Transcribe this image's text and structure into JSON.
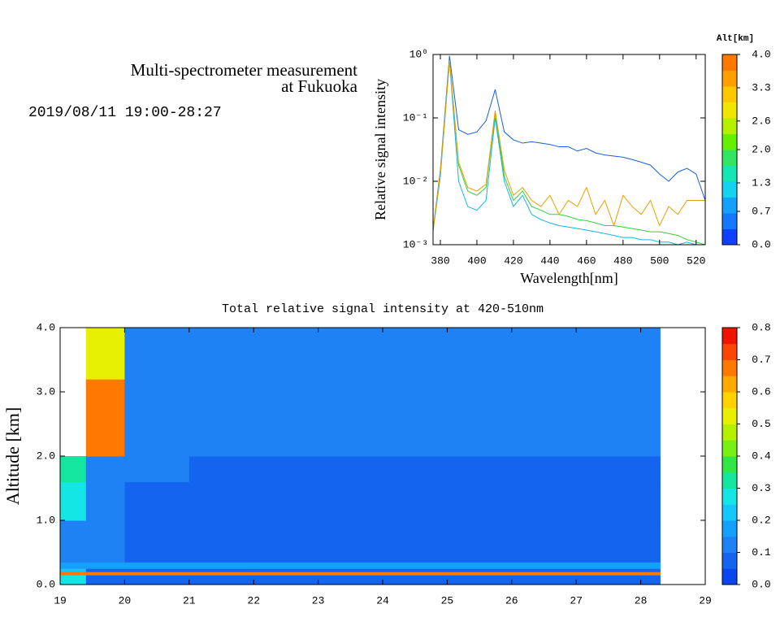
{
  "header": {
    "title_lines": [
      "Multi-spectrometer measurement",
      "at Fukuoka"
    ],
    "date": "2019/08/11 19:00-28:27"
  },
  "chart_data": [
    {
      "type": "line",
      "ylabel": "Relative signal intensity",
      "xlabel": "Wavelength[nm]",
      "log_y": true,
      "xlim": [
        376,
        525
      ],
      "xticks": [
        380,
        400,
        420,
        440,
        460,
        480,
        500,
        520
      ],
      "ylim": [
        0.001,
        1
      ],
      "yticks": [
        {
          "value": 1,
          "label": "10⁰"
        },
        {
          "value": 0.1,
          "label": "10⁻¹"
        },
        {
          "value": 0.01,
          "label": "10⁻²"
        },
        {
          "value": 0.001,
          "label": "10⁻³"
        }
      ],
      "x": [
        375,
        380,
        385,
        390,
        395,
        400,
        405,
        410,
        415,
        420,
        425,
        430,
        435,
        440,
        445,
        450,
        455,
        460,
        465,
        470,
        475,
        480,
        485,
        490,
        495,
        500,
        505,
        510,
        515,
        520,
        525
      ],
      "series": [
        {
          "color": "#1a5fd6",
          "values": [
            0.001,
            0.015,
            0.95,
            0.065,
            0.055,
            0.06,
            0.09,
            0.28,
            0.06,
            0.045,
            0.04,
            0.042,
            0.04,
            0.038,
            0.035,
            0.035,
            0.03,
            0.033,
            0.028,
            0.026,
            0.025,
            0.024,
            0.022,
            0.02,
            0.018,
            0.013,
            0.01,
            0.014,
            0.016,
            0.013,
            0.005
          ]
        },
        {
          "color": "#14b4e6",
          "values": [
            0.001,
            0.012,
            0.8,
            0.01,
            0.004,
            0.0035,
            0.005,
            0.1,
            0.01,
            0.004,
            0.006,
            0.003,
            0.0025,
            0.0022,
            0.002,
            0.0019,
            0.0018,
            0.0017,
            0.0016,
            0.0015,
            0.0014,
            0.0013,
            0.0013,
            0.0012,
            0.0012,
            0.0011,
            0.0011,
            0.001,
            0.0011,
            0.001,
            0.001
          ]
        },
        {
          "color": "#32d23c",
          "values": [
            0.001,
            0.013,
            0.8,
            0.018,
            0.007,
            0.006,
            0.008,
            0.12,
            0.012,
            0.005,
            0.007,
            0.004,
            0.0035,
            0.003,
            0.003,
            0.0028,
            0.0025,
            0.0024,
            0.0022,
            0.002,
            0.002,
            0.0019,
            0.0018,
            0.0017,
            0.0016,
            0.0016,
            0.0015,
            0.0014,
            0.0012,
            0.0011,
            0.001
          ]
        },
        {
          "color": "#e6a000",
          "values": [
            0.001,
            0.014,
            0.8,
            0.02,
            0.008,
            0.007,
            0.009,
            0.13,
            0.015,
            0.006,
            0.008,
            0.005,
            0.004,
            0.006,
            0.003,
            0.005,
            0.004,
            0.008,
            0.003,
            0.005,
            0.002,
            0.006,
            0.004,
            0.003,
            0.005,
            0.002,
            0.004,
            0.003,
            0.005,
            0.005,
            0.005
          ]
        }
      ],
      "colorbar": {
        "label": "Alt[km]",
        "lim": [
          0,
          4
        ],
        "ticks": [
          {
            "value": 0,
            "label": "0.0"
          },
          0.7,
          1.3,
          {
            "value": 2,
            "label": "2.0"
          },
          2.6,
          3.3,
          {
            "value": 4,
            "label": "4.0"
          }
        ],
        "colors": [
          "#1040ff",
          "#1478ff",
          "#14a0ff",
          "#14d2f0",
          "#14e6b4",
          "#32e664",
          "#64f000",
          "#b4f000",
          "#f0e600",
          "#ffc800",
          "#ffa000",
          "#ff7800"
        ]
      }
    },
    {
      "type": "heatmap",
      "title": "Total relative signal intensity at 420-510nm",
      "ylabel": "Altitude [km]",
      "xlim": [
        19,
        29
      ],
      "xticks": [
        19,
        20,
        21,
        22,
        23,
        24,
        25,
        26,
        27,
        28,
        29
      ],
      "ylim": [
        0,
        4
      ],
      "yticks": [
        {
          "value": 0,
          "label": "0.0"
        },
        {
          "value": 1,
          "label": "1.0"
        },
        {
          "value": 2,
          "label": "2.0"
        },
        {
          "value": 3,
          "label": "3.0"
        },
        {
          "value": 4,
          "label": "4.0"
        }
      ],
      "x_bins": [
        19,
        19.4,
        20,
        21,
        22,
        23,
        24,
        25,
        26,
        27,
        28,
        28.3
      ],
      "y_bins": [
        0,
        0.15,
        0.2,
        0.25,
        0.35,
        1.0,
        1.6,
        2.0,
        2.6,
        3.2,
        4.0
      ],
      "z": [
        [
          0.3,
          0.05,
          0.05,
          0.05,
          0.05,
          0.05,
          0.05,
          0.05,
          0.05,
          0.05,
          0.05
        ],
        [
          0.65,
          0.65,
          0.65,
          0.65,
          0.65,
          0.65,
          0.65,
          0.65,
          0.65,
          0.65,
          0.65
        ],
        [
          0.2,
          0.06,
          0.06,
          0.06,
          0.06,
          0.06,
          0.06,
          0.06,
          0.06,
          0.06,
          0.06
        ],
        [
          0.16,
          0.16,
          0.16,
          0.16,
          0.16,
          0.16,
          0.16,
          0.16,
          0.16,
          0.16,
          0.16
        ],
        [
          0.15,
          0.1,
          0.09,
          0.08,
          0.07,
          0.07,
          0.07,
          0.07,
          0.07,
          0.07,
          0.07
        ],
        [
          0.25,
          0.1,
          0.09,
          0.07,
          0.06,
          0.06,
          0.06,
          0.06,
          0.06,
          0.06,
          0.07
        ],
        [
          0.35,
          0.11,
          0.1,
          0.09,
          0.08,
          0.08,
          0.08,
          0.08,
          0.08,
          0.08,
          0.08
        ],
        [
          null,
          0.7,
          0.12,
          0.1,
          0.1,
          0.1,
          0.1,
          0.1,
          0.1,
          0.1,
          0.1
        ],
        [
          null,
          0.7,
          0.13,
          0.12,
          0.12,
          0.12,
          0.12,
          0.12,
          0.12,
          0.12,
          0.12
        ],
        [
          null,
          0.5,
          0.14,
          0.13,
          0.13,
          0.13,
          0.13,
          0.13,
          0.13,
          0.14,
          0.13
        ]
      ],
      "colorbar": {
        "lim": [
          0,
          0.8
        ],
        "ticks": [
          {
            "value": 0,
            "label": "0.0"
          },
          0.1,
          0.2,
          0.3,
          0.4,
          0.5,
          0.6,
          0.7,
          0.8
        ],
        "colors": [
          "#0a46f0",
          "#1464f0",
          "#1e82f5",
          "#14a0ff",
          "#14c8ff",
          "#14e6e6",
          "#14e6a0",
          "#32e646",
          "#78f014",
          "#b4f000",
          "#e6f000",
          "#ffd200",
          "#ffaa00",
          "#ff7800",
          "#ff4600",
          "#f01400"
        ]
      }
    }
  ]
}
